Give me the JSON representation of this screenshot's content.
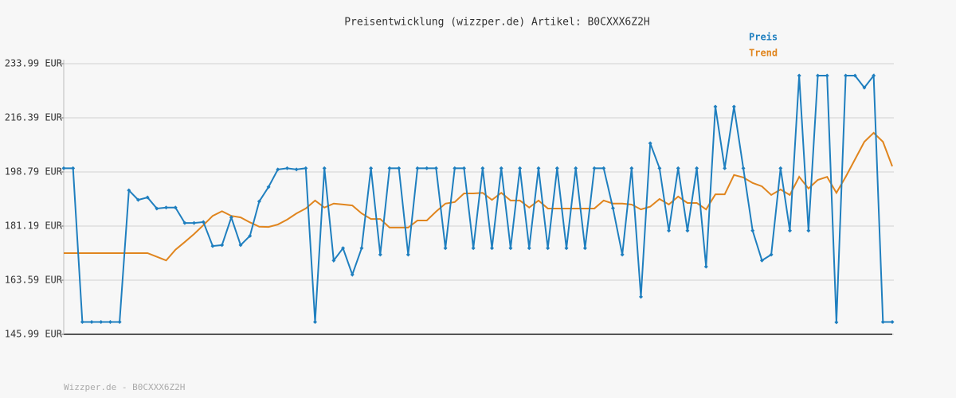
{
  "chart_data": {
    "type": "line",
    "title": "Preisentwicklung (wizzper.de) Artikel: B0CXXX6Z2H",
    "ylim": [
      145.99,
      233.99
    ],
    "yticks": [
      {
        "value": 145.99,
        "label": "145.99 EUR"
      },
      {
        "value": 163.59,
        "label": "163.59 EUR"
      },
      {
        "value": 181.19,
        "label": "181.19 EUR"
      },
      {
        "value": 198.79,
        "label": "198.79 EUR"
      },
      {
        "value": 216.39,
        "label": "216.39 EUR"
      },
      {
        "value": 233.99,
        "label": "233.99 EUR"
      }
    ],
    "grid": true,
    "legend": "top-right",
    "series": [
      {
        "name": "Preis",
        "color": "#1f7fbf",
        "markers": true,
        "values": [
          200,
          200,
          150,
          150,
          150,
          150,
          150,
          192.8,
          189.7,
          190.5,
          186.9,
          187.2,
          187.2,
          182.2,
          182.2,
          182.5,
          174.7,
          175,
          184,
          175,
          178,
          189.2,
          193.9,
          199.6,
          200,
          199.6,
          200,
          150,
          200,
          170,
          174,
          165.4,
          174,
          200,
          171.9,
          200,
          200,
          171.9,
          200,
          200,
          200,
          174,
          200,
          200,
          174,
          200,
          174,
          200,
          174,
          200,
          174,
          200,
          174,
          200,
          174,
          200,
          174,
          200,
          200,
          187,
          171.9,
          200,
          158.2,
          208.1,
          200,
          179.7,
          200,
          179.7,
          200,
          168,
          220,
          200,
          220,
          200,
          179.7,
          170,
          171.9,
          200,
          179.7,
          230.1,
          179.7,
          230.1,
          230.1,
          149.9,
          230.1,
          230.1,
          226.2,
          230.1,
          150,
          150
        ]
      },
      {
        "name": "Trend",
        "color": "#e0851e",
        "markers": false,
        "values": [
          172.4,
          172.4,
          172.4,
          172.4,
          172.4,
          172.4,
          172.4,
          172.4,
          172.4,
          172.4,
          171.2,
          170,
          173.5,
          176,
          178.6,
          181.5,
          184.5,
          186,
          184.5,
          184,
          182.4,
          181,
          180.9,
          181.7,
          183.3,
          185.3,
          186.9,
          189.5,
          187.2,
          188.5,
          188.2,
          187.9,
          185.3,
          183.5,
          183.5,
          180.7,
          180.7,
          180.7,
          183,
          183,
          185.9,
          188.5,
          189,
          191.8,
          191.8,
          192,
          189.7,
          192,
          189.5,
          189.5,
          187.2,
          189.5,
          186.9,
          186.9,
          186.9,
          186.9,
          186.9,
          186.9,
          189.5,
          188.5,
          188.5,
          188.2,
          186.6,
          187.5,
          190,
          188.2,
          190.8,
          188.7,
          188.7,
          186.6,
          191.5,
          191.5,
          197.8,
          197,
          195.2,
          194.1,
          191.3,
          193.1,
          191.3,
          197.2,
          193.4,
          196.2,
          197.2,
          192,
          197.2,
          202.9,
          208.6,
          211.5,
          208.6,
          200.6
        ]
      }
    ]
  },
  "footer": "Wizzper.de - B0CXXX6Z2H"
}
